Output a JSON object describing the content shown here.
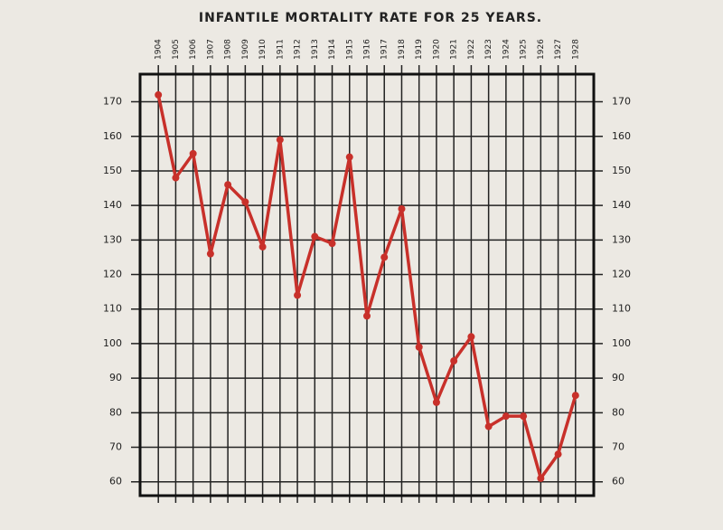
{
  "chart_data": {
    "type": "line",
    "title": "INFANTILE MORTALITY RATE FOR 25 YEARS.",
    "categories": [
      "1904",
      "1905",
      "1906",
      "1907",
      "1908",
      "1909",
      "1910",
      "1911",
      "1912",
      "1913",
      "1914",
      "1915",
      "1916",
      "1917",
      "1918",
      "1919",
      "1920",
      "1921",
      "1922",
      "1923",
      "1924",
      "1925",
      "1926",
      "1927",
      "1928"
    ],
    "series": [
      {
        "name": "Infantile mortality rate",
        "color": "#c8302a",
        "values": [
          172,
          148,
          155,
          126,
          146,
          141,
          128,
          159,
          114,
          131,
          129,
          154,
          108,
          125,
          139,
          99,
          83,
          95,
          102,
          76,
          79,
          79,
          61,
          68,
          85
        ]
      }
    ],
    "ylim": [
      56,
      178
    ],
    "yticks": [
      60,
      70,
      80,
      90,
      100,
      110,
      120,
      130,
      140,
      150,
      160,
      170
    ],
    "grid": true
  }
}
